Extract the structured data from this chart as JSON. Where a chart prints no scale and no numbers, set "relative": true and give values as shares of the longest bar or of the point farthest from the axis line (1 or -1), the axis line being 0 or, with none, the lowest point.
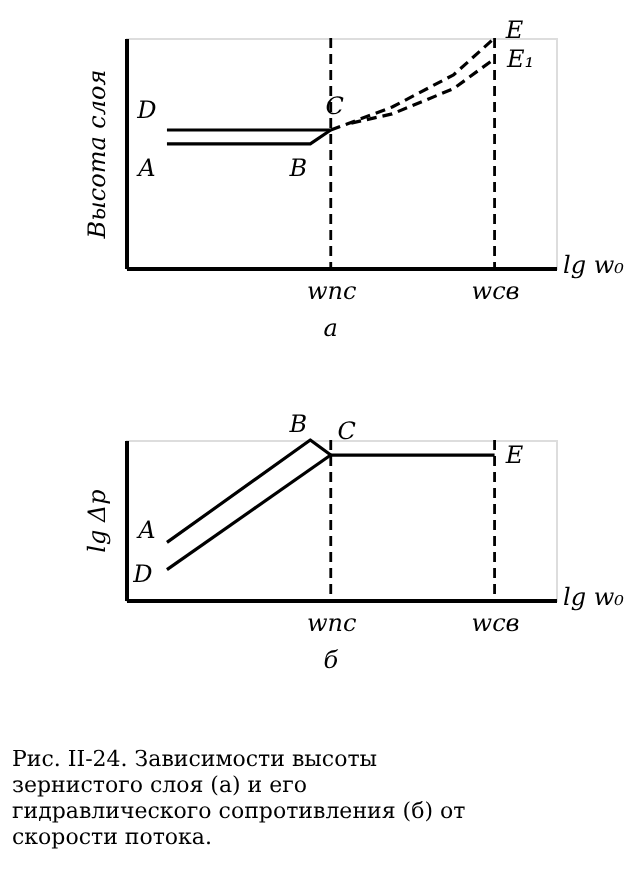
{
  "chart_data": [
    {
      "type": "line",
      "relative": true,
      "ylabel": "Высота слоя",
      "xlabel": "lg w₀",
      "grid": false,
      "categories": [
        null,
        null,
        null,
        null,
        null,
        null,
        null,
        null,
        null,
        null,
        "wпс",
        null,
        null,
        null,
        null,
        null,
        null,
        null,
        "wсв",
        null,
        null,
        null
      ],
      "ref_lines": [
        {
          "axis": "x",
          "value": "wпс",
          "color": "#000000",
          "line_style": "dashed"
        },
        {
          "axis": "x",
          "value": "wсв",
          "color": "#000000",
          "line_style": "dashed"
        }
      ],
      "series": [
        {
          "color": "#000000",
          "line_style": "solid",
          "values": [
            null,
            null,
            0.54,
            null,
            null,
            null,
            null,
            null,
            null,
            0.54,
            0.6,
            null,
            null,
            null,
            null,
            null,
            null,
            null,
            null,
            null,
            null,
            null
          ]
        },
        {
          "color": "#000000",
          "line_style": "solid",
          "values": [
            null,
            null,
            0.6,
            null,
            null,
            null,
            null,
            null,
            null,
            null,
            0.6,
            null,
            null,
            null,
            null,
            null,
            null,
            null,
            null,
            null,
            null,
            null
          ]
        },
        {
          "color": "#000000",
          "line_style": "dashed",
          "values": [
            null,
            null,
            null,
            null,
            null,
            null,
            null,
            null,
            null,
            null,
            0.6,
            null,
            null,
            0.7,
            null,
            null,
            0.84,
            null,
            1.0,
            null,
            null,
            null
          ]
        },
        {
          "color": "#000000",
          "line_style": "dashed",
          "values": [
            null,
            null,
            null,
            null,
            null,
            null,
            null,
            null,
            null,
            null,
            null,
            0.63,
            null,
            0.67,
            null,
            null,
            0.78,
            null,
            0.91,
            null,
            null,
            null
          ]
        }
      ],
      "annotations": [
        "D",
        "A",
        "B",
        "C",
        "E",
        "E₁",
        "а"
      ]
    },
    {
      "type": "line",
      "relative": true,
      "ylabel": "lg Δp",
      "xlabel": "lg w₀",
      "grid": false,
      "categories": [
        null,
        null,
        null,
        null,
        null,
        null,
        null,
        null,
        null,
        null,
        "wпс",
        null,
        null,
        null,
        null,
        null,
        null,
        null,
        "wсв",
        null,
        null,
        null
      ],
      "ref_lines": [
        {
          "axis": "x",
          "value": "wпс",
          "color": "#000000",
          "line_style": "dashed"
        },
        {
          "axis": "x",
          "value": "wсв",
          "color": "#000000",
          "line_style": "dashed"
        }
      ],
      "series": [
        {
          "color": "#000000",
          "line_style": "solid",
          "values": [
            null,
            null,
            0.36,
            null,
            null,
            null,
            null,
            null,
            null,
            1.0,
            0.906,
            null,
            null,
            null,
            null,
            null,
            null,
            null,
            null,
            null,
            null,
            null
          ]
        },
        {
          "color": "#000000",
          "line_style": "solid",
          "values": [
            null,
            null,
            0.19,
            null,
            null,
            null,
            null,
            null,
            null,
            null,
            0.906,
            null,
            null,
            null,
            null,
            null,
            null,
            null,
            null,
            null,
            null,
            null
          ]
        },
        {
          "color": "#000000",
          "line_style": "solid",
          "values": [
            null,
            null,
            null,
            null,
            null,
            null,
            null,
            null,
            null,
            null,
            0.906,
            null,
            null,
            null,
            null,
            null,
            null,
            null,
            0.906,
            null,
            null,
            null
          ]
        }
      ],
      "annotations": [
        "A",
        "D",
        "B",
        "C",
        "E",
        "б",
        "Рис. II-24. Зависимости высоты зернистого слоя (а) и его гидравлического сопротивления (б) от скорости потока."
      ]
    }
  ]
}
